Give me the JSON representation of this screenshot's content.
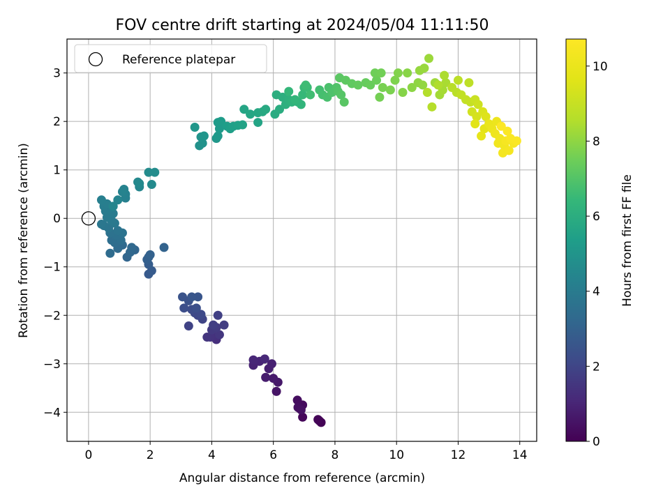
{
  "chart_data": {
    "type": "scatter",
    "title": "FOV centre drift starting at 2024/05/04 11:11:50",
    "xlabel": "Angular distance from reference (arcmin)",
    "ylabel": "Rotation from reference (arcmin)",
    "xlim": [
      -0.7,
      14.55
    ],
    "ylim": [
      -4.6,
      3.7
    ],
    "xticks": [
      0,
      2,
      4,
      6,
      8,
      10,
      12,
      14
    ],
    "yticks": [
      -4,
      -3,
      -2,
      -1,
      0,
      1,
      2,
      3
    ],
    "grid": true,
    "legend": {
      "placement": "top-left",
      "entries": [
        "Reference platepar"
      ]
    },
    "reference_point": {
      "x": 0,
      "y": 0,
      "label": "Reference platepar"
    },
    "colorbar": {
      "label": "Hours from first FF file",
      "range": [
        0,
        10.72
      ],
      "ticks": [
        0,
        2,
        4,
        6,
        8,
        10
      ],
      "colormap": "viridis"
    },
    "series": [
      {
        "values": [
          [
            7.55,
            -4.21,
            0.02
          ],
          [
            7.5,
            -4.18,
            0.06
          ],
          [
            7.45,
            -4.15,
            0.1
          ],
          [
            6.95,
            -4.1,
            0.16
          ],
          [
            6.85,
            -3.92,
            0.22
          ],
          [
            6.95,
            -3.85,
            0.27
          ],
          [
            6.78,
            -3.75,
            0.33
          ],
          [
            6.8,
            -3.9,
            0.38
          ],
          [
            6.9,
            -3.95,
            0.43
          ],
          [
            6.1,
            -3.57,
            0.55
          ],
          [
            6.15,
            -3.38,
            0.62
          ],
          [
            6.0,
            -3.3,
            0.7
          ],
          [
            5.75,
            -3.28,
            0.76
          ],
          [
            5.85,
            -3.1,
            0.82
          ],
          [
            5.95,
            -3.0,
            0.88
          ],
          [
            5.35,
            -3.03,
            0.95
          ],
          [
            5.55,
            -2.95,
            1.0
          ],
          [
            5.35,
            -2.92,
            1.05
          ],
          [
            5.72,
            -2.9,
            1.1
          ],
          [
            4.15,
            -2.5,
            1.3
          ],
          [
            4.05,
            -2.42,
            1.36
          ],
          [
            3.95,
            -2.45,
            1.42
          ],
          [
            3.85,
            -2.45,
            1.48
          ],
          [
            4.25,
            -2.4,
            1.54
          ],
          [
            4.0,
            -2.3,
            1.6
          ],
          [
            4.15,
            -2.25,
            1.66
          ],
          [
            4.4,
            -2.2,
            1.72
          ],
          [
            4.05,
            -2.2,
            1.78
          ],
          [
            4.2,
            -2.0,
            1.84
          ],
          [
            3.25,
            -2.22,
            1.92
          ],
          [
            3.7,
            -2.08,
            1.98
          ],
          [
            3.55,
            -2.0,
            2.04
          ],
          [
            3.45,
            -1.95,
            2.1
          ],
          [
            3.65,
            -1.98,
            2.16
          ],
          [
            3.35,
            -1.88,
            2.22
          ],
          [
            3.1,
            -1.85,
            2.28
          ],
          [
            3.5,
            -1.85,
            2.34
          ],
          [
            3.25,
            -1.7,
            2.4
          ],
          [
            3.05,
            -1.62,
            2.46
          ],
          [
            3.55,
            -1.62,
            2.52
          ],
          [
            3.35,
            -1.62,
            2.58
          ],
          [
            1.95,
            -1.15,
            2.7
          ],
          [
            2.05,
            -1.08,
            2.76
          ],
          [
            1.95,
            -0.95,
            2.82
          ],
          [
            1.95,
            -0.8,
            2.88
          ],
          [
            1.9,
            -0.85,
            2.94
          ],
          [
            2.0,
            -0.75,
            3.0
          ],
          [
            2.45,
            -0.6,
            3.05
          ],
          [
            1.5,
            -0.65,
            3.1
          ],
          [
            1.25,
            -0.8,
            3.15
          ],
          [
            1.35,
            -0.7,
            3.2
          ],
          [
            1.4,
            -0.6,
            3.25
          ],
          [
            1.1,
            -0.55,
            3.3
          ],
          [
            0.95,
            -0.62,
            3.34
          ],
          [
            0.7,
            -0.72,
            3.38
          ],
          [
            0.85,
            -0.5,
            3.42
          ],
          [
            0.75,
            -0.45,
            3.46
          ],
          [
            1.05,
            -0.45,
            3.5
          ],
          [
            1.0,
            -0.38,
            3.54
          ],
          [
            0.9,
            -0.35,
            3.58
          ],
          [
            0.7,
            -0.3,
            3.62
          ],
          [
            1.1,
            -0.3,
            3.66
          ],
          [
            0.95,
            -0.25,
            3.7
          ],
          [
            0.65,
            -0.2,
            3.74
          ],
          [
            0.5,
            -0.15,
            3.78
          ],
          [
            0.42,
            -0.12,
            3.82
          ],
          [
            0.85,
            -0.1,
            3.86
          ],
          [
            0.75,
            -0.05,
            3.9
          ],
          [
            0.6,
            0.02,
            3.94
          ],
          [
            0.8,
            0.1,
            3.98
          ],
          [
            0.55,
            0.15,
            4.02
          ],
          [
            0.7,
            0.2,
            4.06
          ],
          [
            0.5,
            0.25,
            4.1
          ],
          [
            0.6,
            0.3,
            4.14
          ],
          [
            0.42,
            0.38,
            4.18
          ],
          [
            1.2,
            0.42,
            4.22
          ],
          [
            1.2,
            0.5,
            4.26
          ],
          [
            1.1,
            0.55,
            4.3
          ],
          [
            1.15,
            0.6,
            4.34
          ],
          [
            0.95,
            0.38,
            4.38
          ],
          [
            0.8,
            0.25,
            4.42
          ],
          [
            1.65,
            0.65,
            4.46
          ],
          [
            1.6,
            0.75,
            4.5
          ],
          [
            1.65,
            0.72,
            4.54
          ],
          [
            2.05,
            0.7,
            4.58
          ],
          [
            1.95,
            0.95,
            4.62
          ],
          [
            2.15,
            0.95,
            4.66
          ],
          [
            3.6,
            1.5,
            4.85
          ],
          [
            3.7,
            1.55,
            4.9
          ],
          [
            3.65,
            1.68,
            4.95
          ],
          [
            3.75,
            1.7,
            5.0
          ],
          [
            3.45,
            1.88,
            5.05
          ],
          [
            4.15,
            1.65,
            5.1
          ],
          [
            4.2,
            1.7,
            5.15
          ],
          [
            4.25,
            1.85,
            5.2
          ],
          [
            4.2,
            1.98,
            5.25
          ],
          [
            4.3,
            2.0,
            5.3
          ],
          [
            4.5,
            1.9,
            5.35
          ],
          [
            4.6,
            1.85,
            5.4
          ],
          [
            4.7,
            1.9,
            5.45
          ],
          [
            4.85,
            1.92,
            5.5
          ],
          [
            5.0,
            1.93,
            5.55
          ],
          [
            5.5,
            1.98,
            5.6
          ],
          [
            5.05,
            2.25,
            5.65
          ],
          [
            5.25,
            2.15,
            5.7
          ],
          [
            5.5,
            2.18,
            5.75
          ],
          [
            5.65,
            2.2,
            5.8
          ],
          [
            5.75,
            2.25,
            5.85
          ],
          [
            6.05,
            2.15,
            5.9
          ],
          [
            6.2,
            2.25,
            5.95
          ],
          [
            6.1,
            2.55,
            6.0
          ],
          [
            6.3,
            2.5,
            6.05
          ],
          [
            6.4,
            2.35,
            6.1
          ],
          [
            6.5,
            2.45,
            6.15
          ],
          [
            6.6,
            2.4,
            6.2
          ],
          [
            6.8,
            2.4,
            6.25
          ],
          [
            6.9,
            2.35,
            6.3
          ],
          [
            6.7,
            2.45,
            6.35
          ],
          [
            6.5,
            2.62,
            6.4
          ],
          [
            6.95,
            2.55,
            6.45
          ],
          [
            7.0,
            2.7,
            6.5
          ],
          [
            7.1,
            2.7,
            6.55
          ],
          [
            7.05,
            2.75,
            6.6
          ],
          [
            7.2,
            2.55,
            6.65
          ],
          [
            7.5,
            2.65,
            6.7
          ],
          [
            7.6,
            2.55,
            6.75
          ],
          [
            7.75,
            2.5,
            6.8
          ],
          [
            7.8,
            2.7,
            6.85
          ],
          [
            7.9,
            2.6,
            6.9
          ],
          [
            8.05,
            2.7,
            6.95
          ],
          [
            8.1,
            2.62,
            7.0
          ],
          [
            8.2,
            2.55,
            7.05
          ],
          [
            8.3,
            2.4,
            7.1
          ],
          [
            8.15,
            2.9,
            7.15
          ],
          [
            8.35,
            2.85,
            7.2
          ],
          [
            8.55,
            2.78,
            7.25
          ],
          [
            8.75,
            2.75,
            7.3
          ],
          [
            9.0,
            2.8,
            7.35
          ],
          [
            9.15,
            2.75,
            7.4
          ],
          [
            9.35,
            2.85,
            7.45
          ],
          [
            9.3,
            3.0,
            7.5
          ],
          [
            9.5,
            3.0,
            7.55
          ],
          [
            9.45,
            2.5,
            7.6
          ],
          [
            9.55,
            2.7,
            7.65
          ],
          [
            9.8,
            2.65,
            7.7
          ],
          [
            9.95,
            2.85,
            7.75
          ],
          [
            10.05,
            3.0,
            7.8
          ],
          [
            10.2,
            2.6,
            7.85
          ],
          [
            10.35,
            3.0,
            7.9
          ],
          [
            10.5,
            2.7,
            7.95
          ],
          [
            10.7,
            2.8,
            8.0
          ],
          [
            10.85,
            2.75,
            8.05
          ],
          [
            10.75,
            3.05,
            8.1
          ],
          [
            10.9,
            3.1,
            8.15
          ],
          [
            11.05,
            3.3,
            8.2
          ],
          [
            11.25,
            2.8,
            8.25
          ],
          [
            11.4,
            2.55,
            8.3
          ],
          [
            11.5,
            2.65,
            8.35
          ],
          [
            11.6,
            2.8,
            8.4
          ],
          [
            11.55,
            2.95,
            8.45
          ],
          [
            11.35,
            2.75,
            8.5
          ],
          [
            11.0,
            2.6,
            8.55
          ],
          [
            11.15,
            2.3,
            8.6
          ],
          [
            11.8,
            2.7,
            8.65
          ],
          [
            11.95,
            2.6,
            8.7
          ],
          [
            12.0,
            2.85,
            8.75
          ],
          [
            12.35,
            2.8,
            8.8
          ],
          [
            12.1,
            2.55,
            8.85
          ],
          [
            12.25,
            2.45,
            8.9
          ],
          [
            12.4,
            2.4,
            8.95
          ],
          [
            12.55,
            2.45,
            9.05
          ],
          [
            12.65,
            2.35,
            9.15
          ],
          [
            12.45,
            2.2,
            9.25
          ],
          [
            12.6,
            2.1,
            9.35
          ],
          [
            12.8,
            2.2,
            9.45
          ],
          [
            12.9,
            2.1,
            9.55
          ],
          [
            12.55,
            1.95,
            9.65
          ],
          [
            12.85,
            1.85,
            9.75
          ],
          [
            12.75,
            1.7,
            9.85
          ],
          [
            13.0,
            1.95,
            9.95
          ],
          [
            13.1,
            1.85,
            10.05
          ],
          [
            13.25,
            2.0,
            10.1
          ],
          [
            13.2,
            1.75,
            10.15
          ],
          [
            13.35,
            1.65,
            10.2
          ],
          [
            13.3,
            1.55,
            10.25
          ],
          [
            13.5,
            1.5,
            10.3
          ],
          [
            13.45,
            1.35,
            10.35
          ],
          [
            13.65,
            1.4,
            10.4
          ],
          [
            13.55,
            1.6,
            10.45
          ],
          [
            13.8,
            1.55,
            10.5
          ],
          [
            13.7,
            1.65,
            10.55
          ],
          [
            13.9,
            1.6,
            10.6
          ],
          [
            13.6,
            1.8,
            10.65
          ],
          [
            13.4,
            1.9,
            10.7
          ]
        ]
      }
    ]
  }
}
